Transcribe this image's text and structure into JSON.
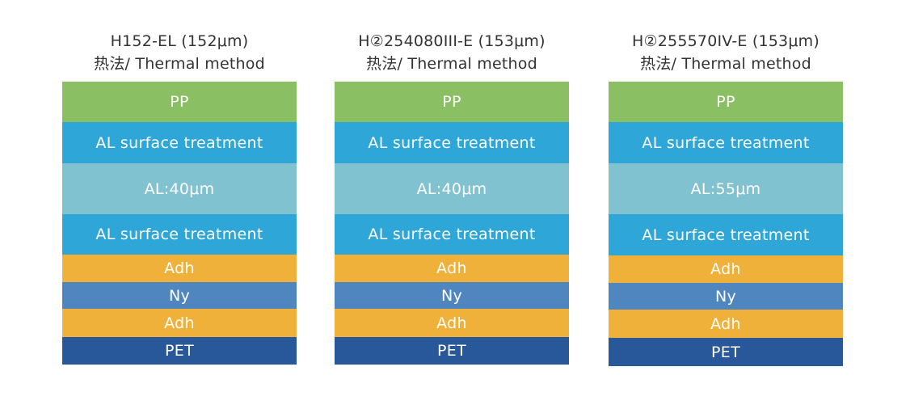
{
  "colors": {
    "pp": "#8bbf63",
    "al_surface_treatment": "#2ea7d8",
    "al": "#80c2cf",
    "adh": "#efb13a",
    "ny": "#4f86bf",
    "pet": "#28579a"
  },
  "stacks": [
    {
      "title_line1": "H152-EL (152μm)",
      "title_line2": "热法/ Thermal method",
      "layers": [
        {
          "label": "PP",
          "type": "pp"
        },
        {
          "label": "AL surface treatment",
          "type": "al_surface_treatment"
        },
        {
          "label": "AL:40μm",
          "type": "al"
        },
        {
          "label": "AL surface treatment",
          "type": "al_surface_treatment"
        },
        {
          "label": "Adh",
          "type": "adh"
        },
        {
          "label": "Ny",
          "type": "ny"
        },
        {
          "label": "Adh",
          "type": "adh"
        },
        {
          "label": "PET",
          "type": "pet"
        }
      ]
    },
    {
      "title_line1": "H②254080III-E (153μm)",
      "title_line2": "热法/ Thermal method",
      "layers": [
        {
          "label": "PP",
          "type": "pp"
        },
        {
          "label": "AL surface treatment",
          "type": "al_surface_treatment"
        },
        {
          "label": "AL:40μm",
          "type": "al"
        },
        {
          "label": "AL surface treatment",
          "type": "al_surface_treatment"
        },
        {
          "label": "Adh",
          "type": "adh"
        },
        {
          "label": "Ny",
          "type": "ny"
        },
        {
          "label": "Adh",
          "type": "adh"
        },
        {
          "label": "PET",
          "type": "pet"
        }
      ]
    },
    {
      "title_line1": "H②255570IV-E (153μm)",
      "title_line2": "热法/ Thermal method",
      "layers": [
        {
          "label": "PP",
          "type": "pp"
        },
        {
          "label": "AL surface treatment",
          "type": "al_surface_treatment"
        },
        {
          "label": "AL:55μm",
          "type": "al"
        },
        {
          "label": "AL surface treatment",
          "type": "al_surface_treatment"
        },
        {
          "label": "Adh",
          "type": "adh"
        },
        {
          "label": "Ny",
          "type": "ny"
        },
        {
          "label": "Adh",
          "type": "adh"
        },
        {
          "label": "PET",
          "type": "pet"
        }
      ]
    }
  ]
}
